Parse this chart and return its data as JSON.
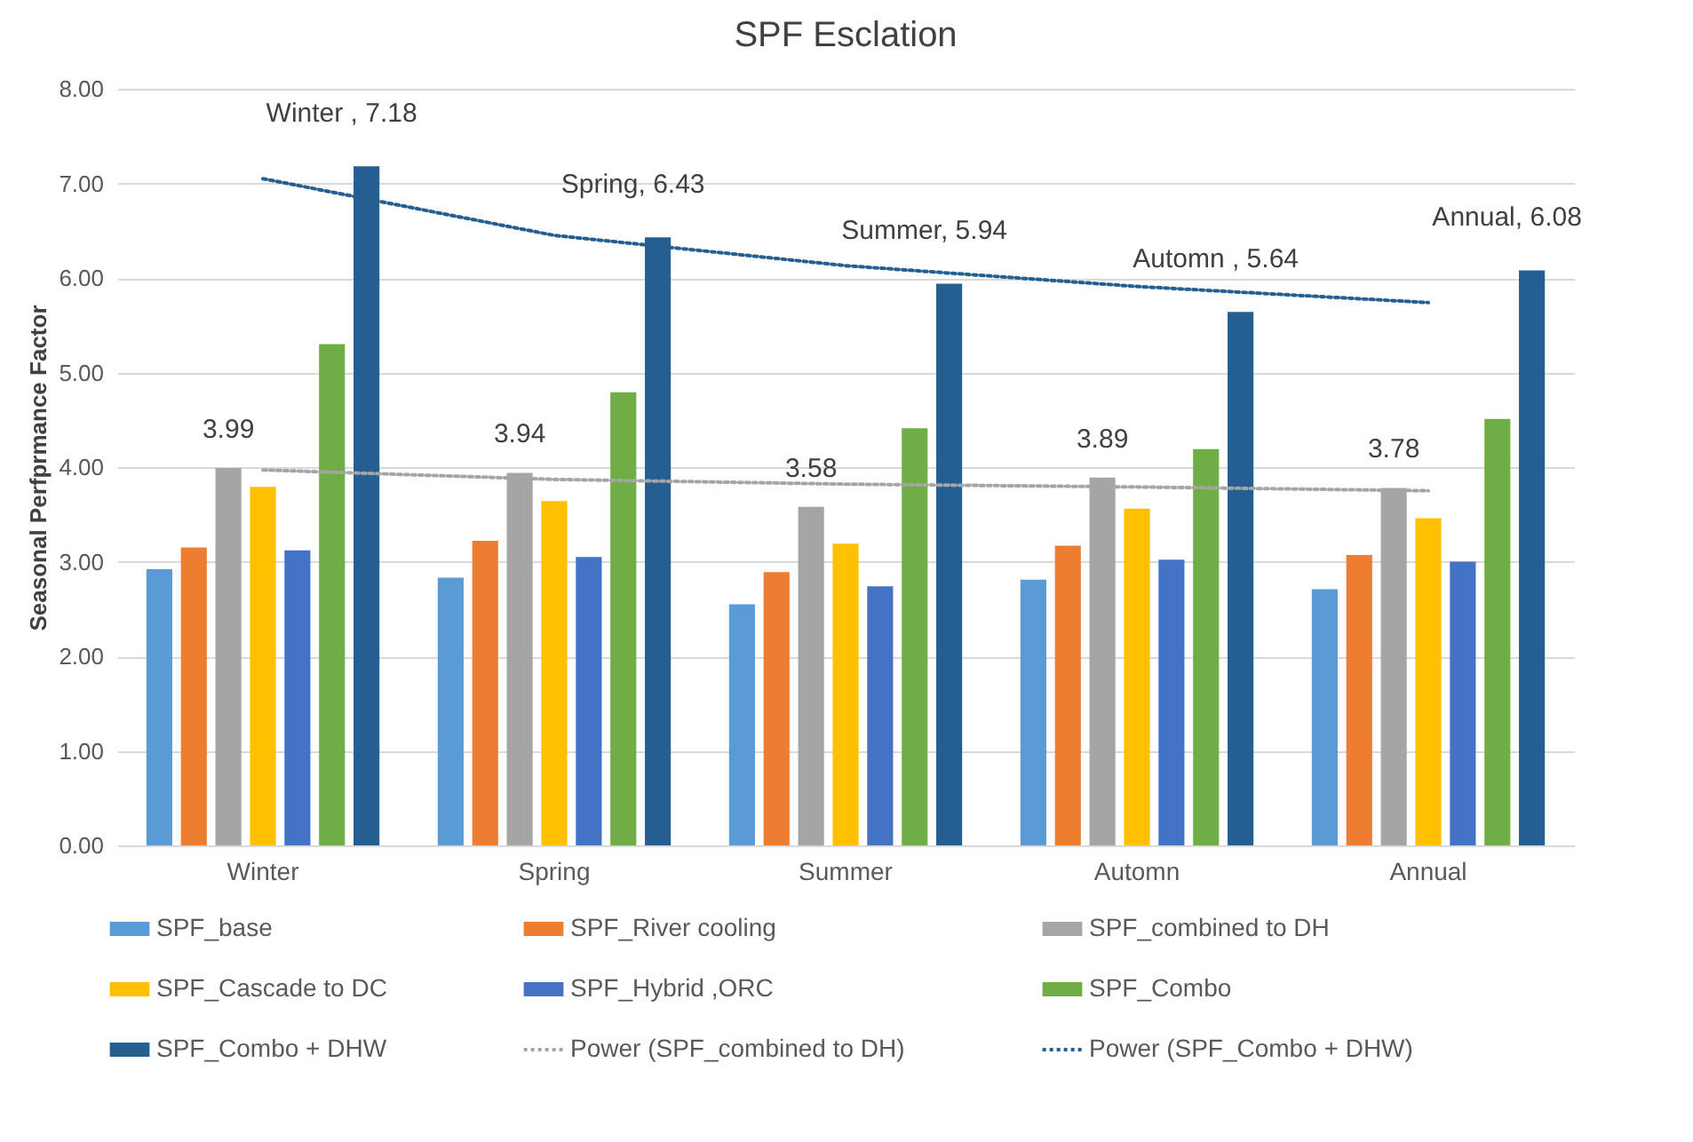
{
  "chart_data": {
    "type": "bar",
    "title": "SPF Esclation",
    "ylabel": "Seasonal Perfprmance Factor",
    "categories": [
      "Winter",
      "Spring",
      "Summer",
      "Automn",
      "Annual"
    ],
    "series": [
      {
        "name": "SPF_base",
        "color": "#5b9bd5",
        "values": [
          2.92,
          2.83,
          2.55,
          2.81,
          2.71
        ]
      },
      {
        "name": "SPF_River cooling",
        "color": "#ed7d31",
        "values": [
          3.15,
          3.22,
          2.89,
          3.17,
          3.07
        ]
      },
      {
        "name": "SPF_combined to DH",
        "color": "#a5a5a5",
        "values": [
          3.99,
          3.94,
          3.58,
          3.89,
          3.78
        ],
        "value_labels": [
          "3.99",
          "3.94",
          "3.58",
          "3.89",
          "3.78"
        ]
      },
      {
        "name": "SPF_Cascade to DC",
        "color": "#ffc000",
        "values": [
          3.79,
          3.64,
          3.19,
          3.56,
          3.46
        ]
      },
      {
        "name": "SPF_Hybrid ,ORC",
        "color": "#4472c4",
        "values": [
          3.12,
          3.05,
          2.74,
          3.02,
          3.0
        ]
      },
      {
        "name": "SPF_Combo",
        "color": "#70ad47",
        "values": [
          5.3,
          4.79,
          4.41,
          4.19,
          4.51
        ]
      },
      {
        "name": "SPF_Combo + DHW",
        "color": "#255e91",
        "values": [
          7.18,
          6.43,
          5.94,
          5.64,
          6.08
        ],
        "value_labels": [
          "Winter , 7.18",
          "Spring, 6.43",
          "Summer, 5.94",
          "Automn , 5.64",
          "Annual, 6.08"
        ]
      },
      {
        "name": "Power (SPF_combined to DH)",
        "type": "line",
        "line_style": "dotted",
        "color": "#a5a5a5",
        "values": [
          3.97,
          3.87,
          3.82,
          3.79,
          3.75
        ]
      },
      {
        "name": "Power (SPF_Combo + DHW)",
        "type": "line",
        "line_style": "dotted",
        "color": "#255e91",
        "values": [
          7.05,
          6.45,
          6.13,
          5.91,
          5.74
        ]
      }
    ],
    "ylim": [
      0,
      8
    ],
    "yticks": [
      {
        "value": 0,
        "label": "0.00"
      },
      {
        "value": 1,
        "label": "1.00"
      },
      {
        "value": 2,
        "label": "2.00"
      },
      {
        "value": 3,
        "label": "3.00"
      },
      {
        "value": 4,
        "label": "4.00"
      },
      {
        "value": 5,
        "label": "5.00"
      },
      {
        "value": 6,
        "label": "6.00"
      },
      {
        "value": 7,
        "label": "7.00"
      },
      {
        "value": 8,
        "label": "8.00"
      }
    ],
    "grid": "y",
    "legend": "bottom"
  }
}
